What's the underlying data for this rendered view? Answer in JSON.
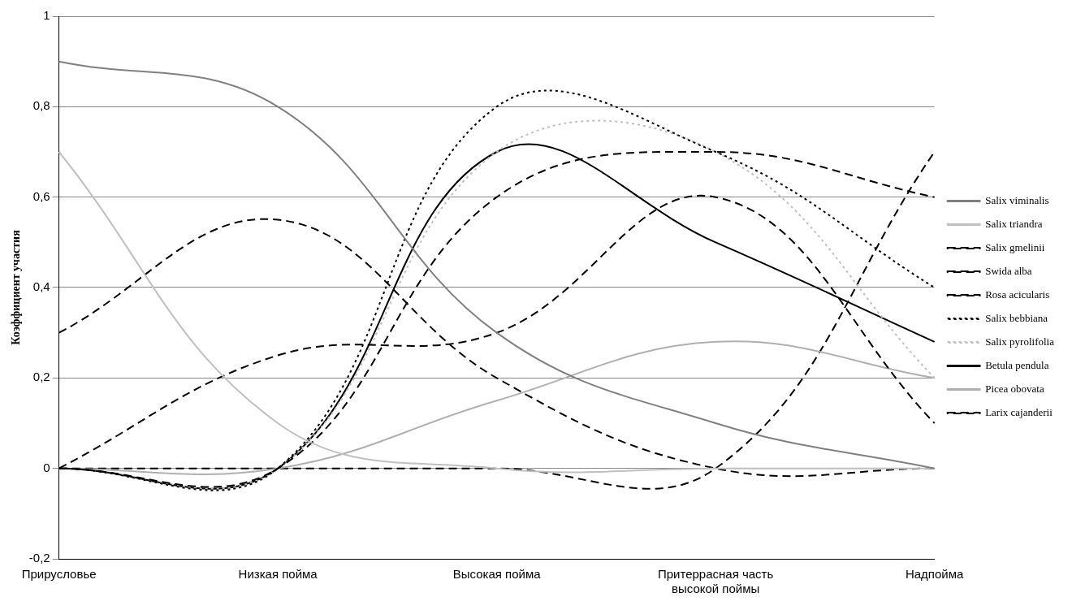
{
  "chart_data": {
    "type": "line",
    "ylabel": "Коэффициент участия",
    "categories": [
      "Прирусловье",
      "Низкая пойма",
      "Высокая пойма",
      "Притеррасная часть высокой поймы",
      "Надпойма"
    ],
    "series": [
      {
        "name": "Salix viminalis",
        "color": "#808080",
        "line_style": "solid",
        "values": [
          0.9,
          0.8,
          0.3,
          0.1,
          0
        ]
      },
      {
        "name": "Salix triandra",
        "color": "#c0c0c0",
        "line_style": "solid",
        "values": [
          0.7,
          0.1,
          0,
          0,
          0
        ]
      },
      {
        "name": "Salix gmelinii",
        "color": "#000000",
        "line_style": "dashed",
        "values": [
          0.3,
          0.55,
          0.2,
          0,
          0
        ]
      },
      {
        "name": "Swida alba",
        "color": "#000000",
        "line_style": "dashed",
        "values": [
          0,
          0.25,
          0.3,
          0.6,
          0.1
        ]
      },
      {
        "name": "Rosa acicularis",
        "color": "#000000",
        "line_style": "dashed",
        "values": [
          0,
          0,
          0.6,
          0.7,
          0.6
        ]
      },
      {
        "name": "Salix bebbiana",
        "color": "#000000",
        "line_style": "dotted",
        "values": [
          0,
          0,
          0.8,
          0.7,
          0.4
        ]
      },
      {
        "name": "Salix pyrolifolia",
        "color": "#c0c0c0",
        "line_style": "dotted",
        "values": [
          0,
          0,
          0.7,
          0.7,
          0.2
        ]
      },
      {
        "name": "Betula pendula",
        "color": "#000000",
        "line_style": "solid",
        "values": [
          0,
          0,
          0.7,
          0.5,
          0.28
        ]
      },
      {
        "name": "Picea obovata",
        "color": "#b0b0b0",
        "line_style": "solid",
        "values": [
          0,
          0,
          0.15,
          0.28,
          0.2
        ]
      },
      {
        "name": "Larix cajanderii",
        "color": "#000000",
        "line_style": "dashed",
        "values": [
          0,
          0,
          0,
          0,
          0.7
        ]
      }
    ],
    "ylim": [
      -0.2,
      1
    ],
    "yticks": [
      {
        "value": -0.2,
        "label": "-0,2"
      },
      0,
      {
        "value": 0.2,
        "label": "0,2"
      },
      {
        "value": 0.4,
        "label": "0,4"
      },
      {
        "value": 0.6,
        "label": "0,6"
      },
      {
        "value": 0.8,
        "label": "0,8"
      },
      1
    ],
    "grid": "y",
    "legend": "right",
    "marker": "none"
  }
}
